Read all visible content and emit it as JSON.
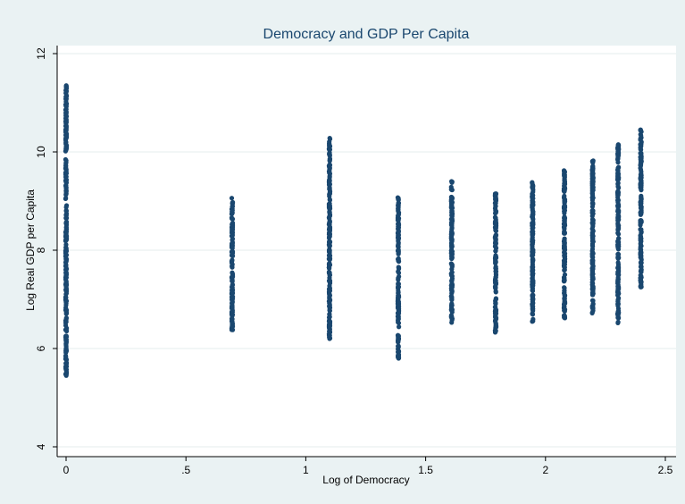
{
  "chart_data": {
    "type": "scatter",
    "title": "Democracy and GDP Per Capita",
    "xlabel": "Log of Democracy",
    "ylabel": "Log Real GDP per Capita",
    "xlim": [
      0,
      2.5
    ],
    "ylim": [
      4,
      12
    ],
    "x_ticks": [
      "0",
      ".5",
      "1",
      "1.5",
      "2",
      "2.5"
    ],
    "y_ticks": [
      "4",
      "6",
      "8",
      "10",
      "12"
    ],
    "grid": true,
    "marker_color": "#1a476f",
    "background_color": "#eaf2f3",
    "plot_background_color": "#ffffff",
    "title_color": "#1a476f",
    "series": [
      {
        "points_by_x": [
          {
            "x": 0.0,
            "y_min": 5.45,
            "y_max": 11.35
          },
          {
            "x": 0.693,
            "y_min": 6.38,
            "y_max": 9.06
          },
          {
            "x": 1.099,
            "y_min": 6.2,
            "y_max": 10.28
          },
          {
            "x": 1.386,
            "y_min": 5.8,
            "y_max": 9.07
          },
          {
            "x": 1.609,
            "y_min": 6.53,
            "y_max": 9.4
          },
          {
            "x": 1.792,
            "y_min": 6.33,
            "y_max": 9.15
          },
          {
            "x": 1.946,
            "y_min": 6.55,
            "y_max": 9.38
          },
          {
            "x": 2.079,
            "y_min": 6.62,
            "y_max": 9.62
          },
          {
            "x": 2.197,
            "y_min": 6.72,
            "y_max": 9.82
          },
          {
            "x": 2.303,
            "y_min": 6.52,
            "y_max": 10.15
          },
          {
            "x": 2.398,
            "y_min": 7.25,
            "y_max": 10.45
          }
        ]
      }
    ]
  }
}
